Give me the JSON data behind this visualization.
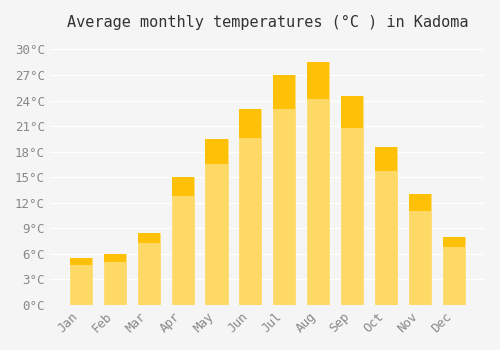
{
  "months": [
    "Jan",
    "Feb",
    "Mar",
    "Apr",
    "May",
    "Jun",
    "Jul",
    "Aug",
    "Sep",
    "Oct",
    "Nov",
    "Dec"
  ],
  "values": [
    5.5,
    6.0,
    8.5,
    15.0,
    19.5,
    23.0,
    27.0,
    28.5,
    24.5,
    18.5,
    13.0,
    8.0
  ],
  "bar_color_top": "#FFC107",
  "bar_color_bottom": "#FFD966",
  "title": "Average monthly temperatures (°C ) in Kadoma",
  "ylabel": "",
  "xlabel": "",
  "ylim": [
    0,
    31
  ],
  "ytick_values": [
    0,
    3,
    6,
    9,
    12,
    15,
    18,
    21,
    24,
    27,
    30
  ],
  "ytick_labels": [
    "0°C",
    "3°C",
    "6°C",
    "9°C",
    "12°C",
    "15°C",
    "18°C",
    "21°C",
    "24°C",
    "27°C",
    "30°C"
  ],
  "background_color": "#f5f5f5",
  "grid_color": "#ffffff",
  "title_fontsize": 11,
  "tick_fontsize": 9,
  "bar_edge_color": "#E8A000"
}
